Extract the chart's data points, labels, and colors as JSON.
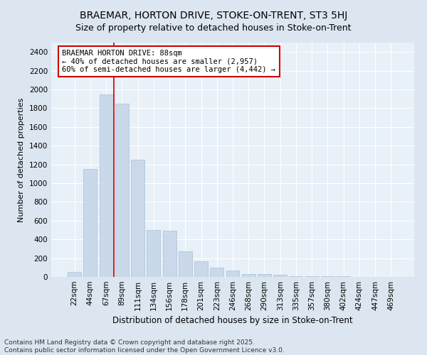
{
  "title1": "BRAEMAR, HORTON DRIVE, STOKE-ON-TRENT, ST3 5HJ",
  "title2": "Size of property relative to detached houses in Stoke-on-Trent",
  "xlabel": "Distribution of detached houses by size in Stoke-on-Trent",
  "ylabel": "Number of detached properties",
  "categories": [
    "22sqm",
    "44sqm",
    "67sqm",
    "89sqm",
    "111sqm",
    "134sqm",
    "156sqm",
    "178sqm",
    "201sqm",
    "223sqm",
    "246sqm",
    "268sqm",
    "290sqm",
    "313sqm",
    "335sqm",
    "357sqm",
    "380sqm",
    "402sqm",
    "424sqm",
    "447sqm",
    "469sqm"
  ],
  "values": [
    50,
    1150,
    1950,
    1850,
    1250,
    500,
    490,
    275,
    165,
    95,
    65,
    30,
    28,
    20,
    8,
    6,
    5,
    4,
    2,
    2,
    2
  ],
  "bar_color": "#c9d9ea",
  "bar_edge_color": "#a8bfd4",
  "vline_x": 2.5,
  "vline_color": "#cc0000",
  "annotation_text": "BRAEMAR HORTON DRIVE: 88sqm\n← 40% of detached houses are smaller (2,957)\n60% of semi-detached houses are larger (4,442) →",
  "annotation_box_color": "#ffffff",
  "annotation_box_edge_color": "#cc0000",
  "annotation_fontsize": 7.5,
  "ylim": [
    0,
    2500
  ],
  "yticks": [
    0,
    200,
    400,
    600,
    800,
    1000,
    1200,
    1400,
    1600,
    1800,
    2000,
    2200,
    2400
  ],
  "title1_fontsize": 10,
  "title2_fontsize": 9,
  "xlabel_fontsize": 8.5,
  "ylabel_fontsize": 8,
  "tick_fontsize": 7.5,
  "footer1": "Contains HM Land Registry data © Crown copyright and database right 2025.",
  "footer2": "Contains public sector information licensed under the Open Government Licence v3.0.",
  "footer_fontsize": 6.5,
  "bg_color": "#dce6f0",
  "plot_bg_color": "#e8f0f8",
  "grid_color": "#ffffff"
}
